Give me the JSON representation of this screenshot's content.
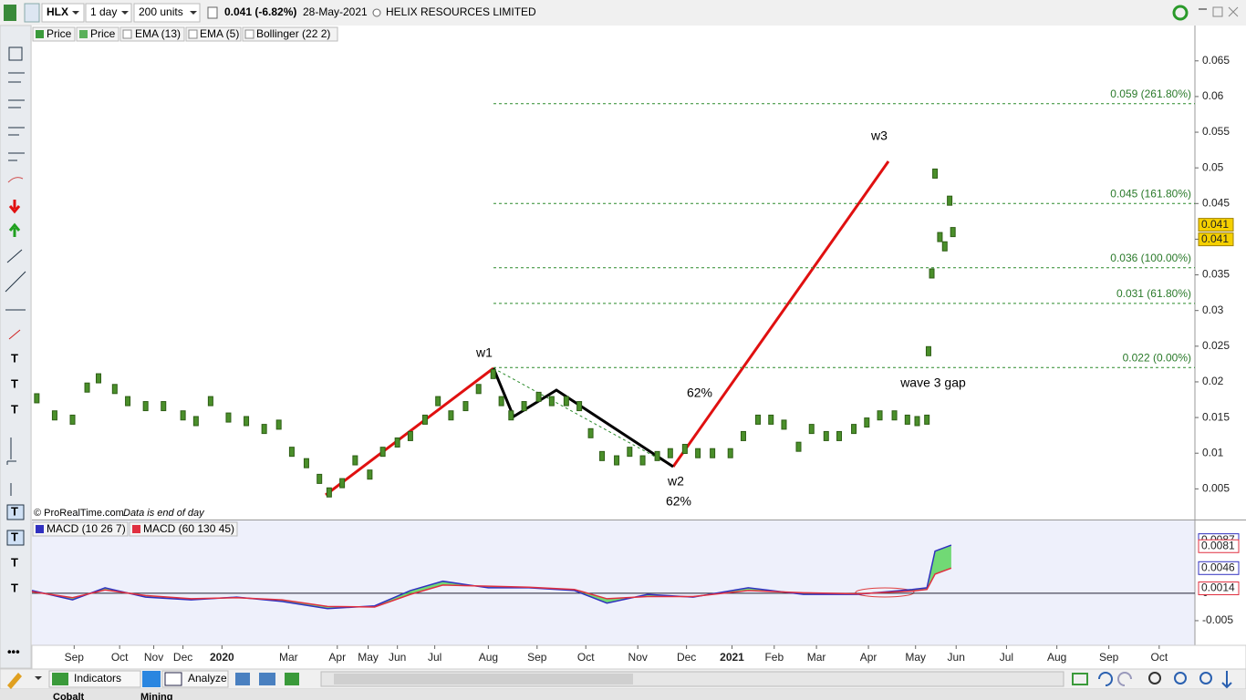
{
  "toolbar": {
    "symbol": "HLX",
    "period": "1 day",
    "units": "200 units",
    "price_change": "0.041 (-6.82%)",
    "date": "28-May-2021",
    "company": "HELIX RESOURCES LIMITED"
  },
  "legend": [
    "Price",
    "Price",
    "EMA (13)",
    "EMA (5)",
    "Bollinger (22 2)"
  ],
  "watermark": {
    "source": "© ProRealTime.com",
    "note": "Data is end of day"
  },
  "annotations": [
    "w1",
    "w2",
    "w3",
    "62%",
    "62%",
    "wave 3 gap"
  ],
  "bottom_toolbar": [
    "Indicators",
    "Analyze"
  ],
  "tabs": [
    "Cobalt",
    "Mining"
  ],
  "chart_data": {
    "type": "price-bars",
    "color": "#4a8f2a",
    "x": [
      3,
      14,
      25,
      34,
      41,
      51,
      59,
      70,
      81,
      93,
      101,
      110,
      121,
      132,
      143,
      152,
      160,
      169,
      177,
      183,
      191,
      199,
      208,
      216,
      225,
      233,
      242,
      250,
      258,
      267,
      275,
      284,
      289,
      295,
      303,
      312,
      320,
      329,
      337,
      344,
      351,
      360,
      368,
      376,
      385,
      393,
      402,
      410,
      419,
      430,
      438,
      447,
      455,
      463,
      472,
      480,
      489,
      497,
      506,
      514,
      522,
      531,
      539,
      545,
      551,
      552,
      554,
      556,
      559,
      562,
      565,
      567
    ],
    "values": [
      0.0177,
      0.0153,
      0.0147,
      0.0192,
      0.0205,
      0.019,
      0.0173,
      0.0166,
      0.0166,
      0.0153,
      0.0145,
      0.0173,
      0.015,
      0.0145,
      0.0134,
      0.014,
      0.0102,
      0.0086,
      0.0064,
      0.0045,
      0.0058,
      0.009,
      0.007,
      0.0102,
      0.0115,
      0.0124,
      0.0147,
      0.0173,
      0.0153,
      0.0166,
      0.019,
      0.0211,
      0.0173,
      0.0153,
      0.0166,
      0.0179,
      0.0173,
      0.0173,
      0.0166,
      0.0128,
      0.0096,
      0.009,
      0.0102,
      0.009,
      0.0096,
      0.01,
      0.0106,
      0.01,
      0.01,
      0.01,
      0.0124,
      0.0147,
      0.0147,
      0.014,
      0.0109,
      0.0134,
      0.0124,
      0.0124,
      0.0134,
      0.0143,
      0.0153,
      0.0153,
      0.0147,
      0.0145,
      0.0147,
      0.0243,
      0.0352,
      0.0492,
      0.0403,
      0.039,
      0.0454,
      0.041
    ],
    "xlim": [
      0,
      716
    ],
    "xticks": [
      {
        "value": 26,
        "label": "Sep"
      },
      {
        "value": 54,
        "label": "Oct"
      },
      {
        "value": 75,
        "label": "Nov"
      },
      {
        "value": 93,
        "label": "Dec"
      },
      {
        "value": 117,
        "label": "2020"
      },
      {
        "value": 158,
        "label": "Mar"
      },
      {
        "value": 188,
        "label": "Apr"
      },
      {
        "value": 207,
        "label": "May"
      },
      {
        "value": 225,
        "label": "Jun"
      },
      {
        "value": 248,
        "label": "Jul"
      },
      {
        "value": 281,
        "label": "Aug"
      },
      {
        "value": 311,
        "label": "Sep"
      },
      {
        "value": 341,
        "label": "Oct"
      },
      {
        "value": 373,
        "label": "Nov"
      },
      {
        "value": 403,
        "label": "Dec"
      },
      {
        "value": 431,
        "label": "2021"
      },
      {
        "value": 457,
        "label": "Feb"
      },
      {
        "value": 483,
        "label": "Mar"
      },
      {
        "value": 515,
        "label": "Apr"
      },
      {
        "value": 544,
        "label": "May"
      },
      {
        "value": 569,
        "label": "Jun"
      },
      {
        "value": 600,
        "label": "Jul"
      },
      {
        "value": 631,
        "label": "Aug"
      },
      {
        "value": 663,
        "label": "Sep"
      },
      {
        "value": 694,
        "label": "Oct"
      }
    ],
    "ylim": [
      0.0007,
      0.0697
    ],
    "yticks": [
      0.005,
      0.01,
      0.015,
      0.02,
      0.025,
      0.03,
      0.035,
      0.04,
      0.045,
      0.05,
      0.055,
      0.06,
      0.065
    ],
    "fib_levels": [
      {
        "value": 0.059,
        "label": "0.059 (261.80%)"
      },
      {
        "value": 0.045,
        "label": "0.045 (161.80%)"
      },
      {
        "value": 0.036,
        "label": "0.036 (100.00%)"
      },
      {
        "value": 0.031,
        "label": "0.031 (61.80%)"
      },
      {
        "value": 0.022,
        "label": "0.022 (0.00%)"
      }
    ],
    "fib_color": "#2a8a2a",
    "last_price_badges": [
      0.041,
      0.041
    ]
  },
  "macd_chart": {
    "type": "line",
    "x": [
      0,
      25,
      45,
      70,
      98,
      126,
      154,
      182,
      211,
      233,
      253,
      281,
      306,
      334,
      354,
      379,
      407,
      441,
      475,
      508,
      542,
      551,
      556,
      566
    ],
    "series": [
      {
        "name": "MACD (10 26 7)",
        "color": "#3030c0",
        "values": [
          0.0005,
          -0.0012,
          0.001,
          -0.0007,
          -0.0012,
          -0.0007,
          -0.0015,
          -0.0028,
          -0.0023,
          0.0005,
          0.0022,
          0.001,
          0.001,
          0.0005,
          -0.0018,
          -0.0002,
          -0.0007,
          0.001,
          -0.0002,
          -0.0002,
          0.0007,
          0.001,
          0.0077,
          0.0088
        ]
      },
      {
        "name": "MACD (60 130 45)",
        "color": "#e03040",
        "values": [
          0.0003,
          -0.0008,
          0.0006,
          -0.0004,
          -0.001,
          -0.0008,
          -0.0012,
          -0.0024,
          -0.0025,
          -0.0002,
          0.0015,
          0.0013,
          0.0011,
          0.0007,
          -0.001,
          -0.0006,
          -0.0006,
          0.0005,
          0.0001,
          -0.0001,
          0.0004,
          0.0007,
          0.0035,
          0.0046
        ]
      }
    ],
    "xlim": [
      0,
      716
    ],
    "ylim": [
      -0.0095,
      0.0133
    ],
    "yticks": [
      0,
      -0.005
    ],
    "badges": [
      {
        "value": 0.0087,
        "color": "#3030c0"
      },
      {
        "value": 0.0081,
        "color": "#e03040"
      },
      {
        "value": 0.0046,
        "color": "#3030c0"
      },
      {
        "value": 0.0014,
        "color": "#e03040"
      }
    ]
  }
}
